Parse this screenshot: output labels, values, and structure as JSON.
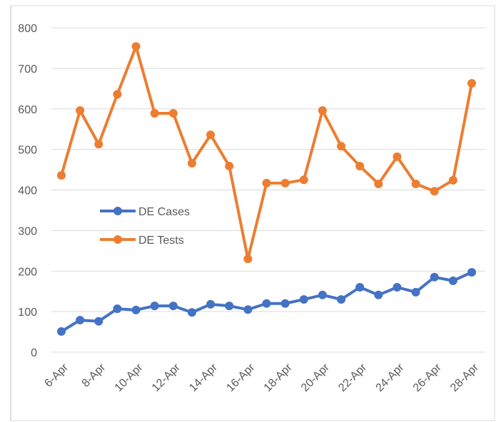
{
  "chart_data": {
    "type": "line",
    "categories": [
      "6-Apr",
      null,
      "8-Apr",
      null,
      "10-Apr",
      null,
      "12-Apr",
      null,
      "14-Apr",
      null,
      "16-Apr",
      null,
      "18-Apr",
      null,
      "20-Apr",
      null,
      "22-Apr",
      null,
      "24-Apr",
      null,
      "26-Apr",
      null,
      "28-Apr"
    ],
    "series": [
      {
        "name": "DE Cases",
        "color": "#4472c4",
        "values": [
          51,
          79,
          76,
          107,
          104,
          114,
          114,
          98,
          118,
          114,
          105,
          120,
          120,
          130,
          141,
          130,
          160,
          141,
          160,
          148,
          185,
          176,
          197
        ]
      },
      {
        "name": "DE Tests",
        "color": "#ed7d31",
        "values": [
          436,
          596,
          513,
          636,
          754,
          589,
          589,
          466,
          536,
          459,
          230,
          417,
          417,
          425,
          596,
          508,
          459,
          415,
          482,
          415,
          397,
          424,
          663
        ]
      }
    ],
    "ylim": [
      0,
      800
    ],
    "yticks": [
      0,
      100,
      200,
      300,
      400,
      500,
      600,
      700,
      800
    ],
    "grid": true,
    "legend": "center-left"
  }
}
